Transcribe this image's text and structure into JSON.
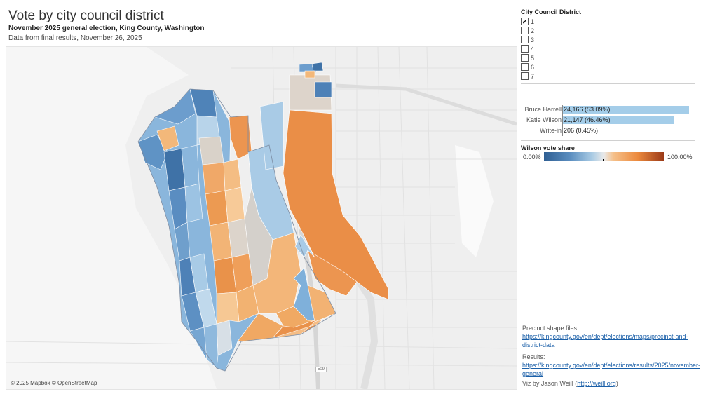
{
  "header": {
    "title": "Vote by city council district",
    "subtitle": "November 2025 general election, King County, Washington",
    "source_prefix": "Data from ",
    "source_link": "final",
    "source_suffix": " results, November 26, 2025"
  },
  "map": {
    "attribution": "© 2025 Mapbox © OpenStreetMap",
    "highway_shield": "509"
  },
  "filter": {
    "title": "City Council District",
    "items": [
      {
        "label": "1",
        "checked": true
      },
      {
        "label": "2",
        "checked": false
      },
      {
        "label": "3",
        "checked": false
      },
      {
        "label": "4",
        "checked": false
      },
      {
        "label": "5",
        "checked": false
      },
      {
        "label": "6",
        "checked": false
      },
      {
        "label": "7",
        "checked": false
      }
    ]
  },
  "results": [
    {
      "name": "Bruce Harrell",
      "label": "24,166 (53.09%)",
      "share": 0.5309
    },
    {
      "name": "Katie Wilson",
      "label": "21,147 (46.46%)",
      "share": 0.4646
    },
    {
      "name": "Write-in",
      "label": "206 (0.45%)",
      "share": 0.0045
    }
  ],
  "color_legend": {
    "title": "Wilson vote share",
    "min": "0.00%",
    "max": "100.00%",
    "colors": [
      "#2f5f93",
      "#a9cbe4",
      "#e9e9e9",
      "#ec8a3d",
      "#9b3a18"
    ]
  },
  "footer": {
    "shapes_prefix": "Precinct shape files: ",
    "shapes_link": "https://kingcounty.gov/en/dept/elections/maps/precinct-and-district-data",
    "results_prefix": "Results: ",
    "results_link": "https://kingcounty.gov/en/dept/elections/results/2025/november-general",
    "credit_prefix": "Viz by Jason Weill (",
    "credit_link": "http://weill.org",
    "credit_suffix": ")"
  }
}
